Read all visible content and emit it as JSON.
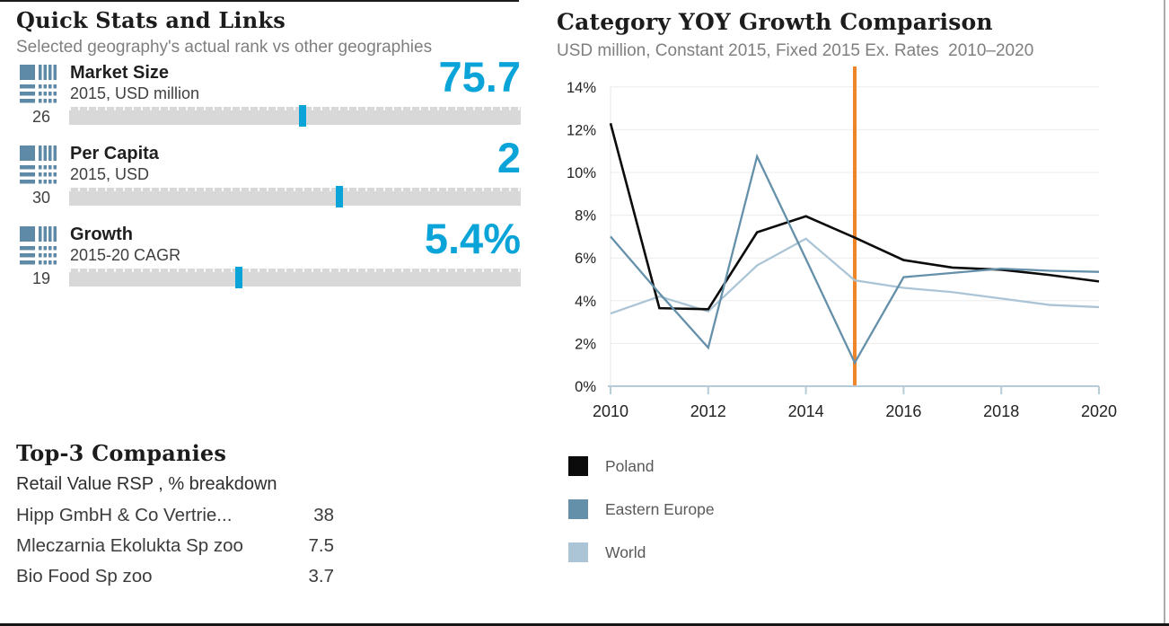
{
  "colors": {
    "accent_cyan": "#0ba4d9",
    "steel_blue": "#6590aa",
    "light_blue": "#abc5d6",
    "highlight_orange": "#ee8629",
    "bar_gray": "#d8d8d8",
    "axis_blue": "#b5cbd9"
  },
  "quick_stats": {
    "title": "Quick Stats and Links",
    "subtitle": "Selected geography's actual rank vs other geographies",
    "stats": [
      {
        "label": "Market Size",
        "sublabel": "2015, USD million",
        "value": "75.7",
        "rank": "26",
        "marker_pct": 51.6
      },
      {
        "label": "Per Capita",
        "sublabel": "2015, USD",
        "value": "2",
        "rank": "30",
        "marker_pct": 59.8
      },
      {
        "label": "Growth",
        "sublabel": "2015-20 CAGR",
        "value": "5.4%",
        "rank": "19",
        "marker_pct": 37.5
      }
    ]
  },
  "top_companies": {
    "title": "Top-3 Companies",
    "subtitle": "Retail Value RSP , % breakdown",
    "rows": [
      {
        "name": "Hipp GmbH & Co Vertrie...",
        "value": "38"
      },
      {
        "name": "Mleczarnia Ekolukta Sp zoo",
        "value": "7.5"
      },
      {
        "name": "Bio Food Sp zoo",
        "value": "3.7"
      }
    ]
  },
  "chart": {
    "title": "Category YOY Growth Comparison",
    "subtitle": "USD million, Constant 2015, Fixed 2015 Ex. Rates  2010–2020"
  },
  "chart_data": {
    "type": "line",
    "title": "Category YOY Growth Comparison",
    "subtitle": "USD million, Constant 2015, Fixed 2015 Ex. Rates 2010–2020",
    "x": [
      2010,
      2011,
      2012,
      2013,
      2014,
      2015,
      2016,
      2017,
      2018,
      2019,
      2020
    ],
    "series": [
      {
        "name": "Poland",
        "color": "#0b0b0b",
        "width": 2.6,
        "values": [
          12.3,
          3.65,
          3.6,
          7.2,
          7.95,
          6.95,
          5.9,
          5.55,
          5.45,
          5.2,
          4.9
        ]
      },
      {
        "name": "Eastern Europe",
        "color": "#6590aa",
        "width": 2.3,
        "values": [
          7.0,
          4.35,
          1.8,
          10.75,
          5.95,
          1.1,
          5.1,
          5.3,
          5.5,
          5.4,
          5.35
        ]
      },
      {
        "name": "World",
        "color": "#abc5d6",
        "width": 2.3,
        "values": [
          3.4,
          4.2,
          3.5,
          5.65,
          6.9,
          4.95,
          4.6,
          4.4,
          4.1,
          3.8,
          3.7
        ]
      }
    ],
    "draw_order": [
      2,
      0,
      1
    ],
    "ylim": [
      0,
      14
    ],
    "ytick_step": 2,
    "ytick_suffix": "%",
    "xticks": [
      2010,
      2012,
      2014,
      2016,
      2018,
      2020
    ],
    "grid": true,
    "legend_position": "below-left",
    "highlight_line": {
      "x": 2015,
      "color": "#ee8629"
    }
  }
}
